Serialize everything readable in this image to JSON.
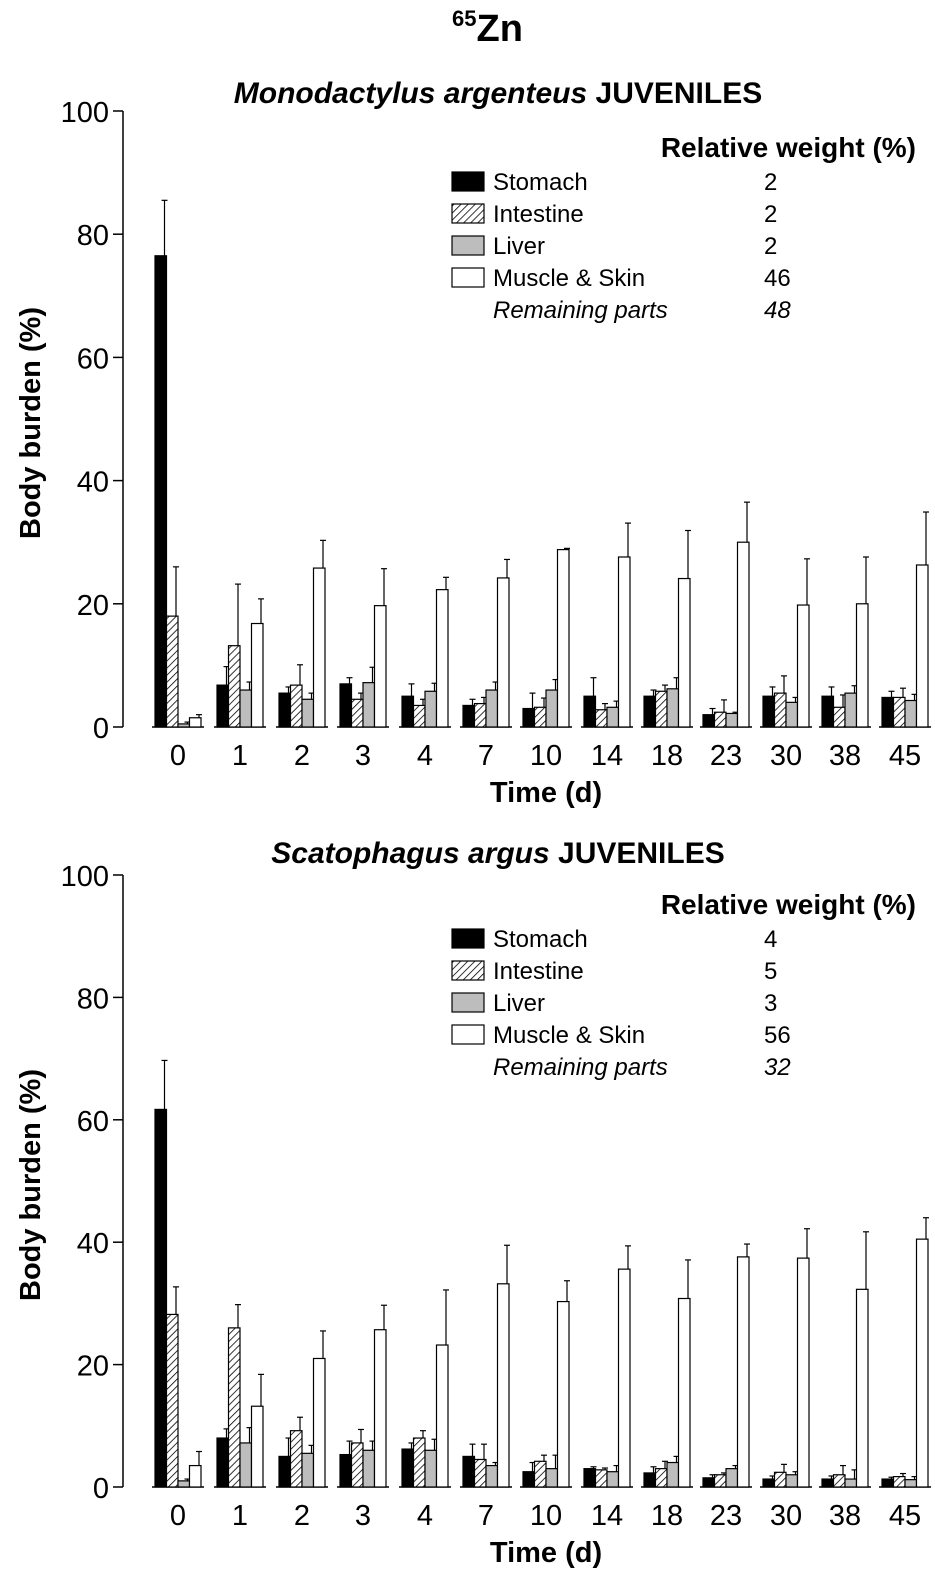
{
  "figure": {
    "title_sup": "65",
    "title_main": "Zn"
  },
  "colors": {
    "stomach": "#000000",
    "intestine_hatch": "#000000",
    "liver": "#bdbdbd",
    "muscle": "#ffffff",
    "axis": "#000000"
  },
  "chart_data": [
    {
      "type": "bar",
      "title_italic": "Monodactylus argenteus",
      "title_rest": " JUVENILES",
      "xlabel": "Time (d)",
      "ylabel": "Body burden (%)",
      "ylim": [
        0,
        100
      ],
      "yticks": [
        "0",
        "20",
        "40",
        "60",
        "80",
        "100"
      ],
      "categories": [
        "0",
        "1",
        "2",
        "3",
        "4",
        "7",
        "10",
        "14",
        "18",
        "23",
        "30",
        "38",
        "45"
      ],
      "legend_header": "Relative weight (%)",
      "series": [
        {
          "name": "Stomach",
          "weight": "2",
          "fill": "stomach",
          "values": [
            76.5,
            6.8,
            5.5,
            7.0,
            5.0,
            3.5,
            3.0,
            5.0,
            5.0,
            2.0,
            5.0,
            5.0,
            4.8
          ],
          "errors": [
            9.0,
            3.0,
            1.0,
            1.0,
            2.0,
            1.0,
            2.5,
            3.0,
            1.0,
            1.0,
            1.5,
            1.5,
            1.0
          ]
        },
        {
          "name": "Intestine",
          "weight": "2",
          "fill": "intestine",
          "values": [
            18.0,
            13.2,
            6.8,
            4.5,
            3.5,
            3.8,
            3.2,
            2.8,
            5.8,
            2.4,
            5.5,
            3.2,
            4.8
          ],
          "errors": [
            8.0,
            10.0,
            3.3,
            1.0,
            1.0,
            1.0,
            1.5,
            1.0,
            1.0,
            2.0,
            2.8,
            2.0,
            1.5
          ]
        },
        {
          "name": "Liver",
          "weight": "2",
          "fill": "liver",
          "values": [
            0.5,
            6.0,
            4.5,
            7.2,
            5.8,
            6.0,
            6.0,
            3.2,
            6.2,
            2.2,
            4.0,
            5.5,
            4.3
          ],
          "errors": [
            0.3,
            1.3,
            1.0,
            2.5,
            1.3,
            1.3,
            1.7,
            1.0,
            1.8,
            0.2,
            0.8,
            1.2,
            1.0
          ]
        },
        {
          "name": "Muscle & Skin",
          "weight": "46",
          "fill": "muscle",
          "values": [
            1.5,
            16.8,
            25.8,
            19.7,
            22.3,
            24.2,
            28.8,
            27.6,
            24.1,
            30.0,
            19.8,
            20.0,
            26.3
          ],
          "errors": [
            0.5,
            4.0,
            4.5,
            6.0,
            2.0,
            3.0,
            0.2,
            5.5,
            7.8,
            6.5,
            7.5,
            7.6,
            8.6
          ]
        }
      ],
      "remaining": {
        "name": "Remaining parts",
        "weight": "48"
      }
    },
    {
      "type": "bar",
      "title_italic": "Scatophagus argus",
      "title_rest": " JUVENILES",
      "xlabel": "Time (d)",
      "ylabel": "Body burden (%)",
      "ylim": [
        0,
        100
      ],
      "yticks": [
        "0",
        "20",
        "40",
        "60",
        "80",
        "100"
      ],
      "categories": [
        "0",
        "1",
        "2",
        "3",
        "4",
        "7",
        "10",
        "14",
        "18",
        "23",
        "30",
        "38",
        "45"
      ],
      "legend_header": "Relative weight (%)",
      "series": [
        {
          "name": "Stomach",
          "weight": "4",
          "fill": "stomach",
          "values": [
            61.7,
            8.0,
            5.0,
            5.3,
            6.2,
            5.0,
            2.5,
            3.0,
            2.3,
            1.5,
            1.3,
            1.3,
            1.3
          ],
          "errors": [
            8.0,
            1.5,
            3.0,
            2.2,
            1.0,
            2.0,
            1.5,
            0.3,
            1.0,
            0.5,
            0.5,
            0.5,
            0.3
          ]
        },
        {
          "name": "Intestine",
          "weight": "5",
          "fill": "intestine",
          "values": [
            28.2,
            26.0,
            9.2,
            7.2,
            8.0,
            4.5,
            4.2,
            2.8,
            3.0,
            2.0,
            2.4,
            2.0,
            1.7
          ],
          "errors": [
            4.5,
            3.8,
            2.2,
            2.2,
            1.2,
            2.5,
            1.0,
            0.3,
            1.2,
            0.3,
            1.3,
            1.5,
            0.5
          ]
        },
        {
          "name": "Liver",
          "weight": "3",
          "fill": "liver",
          "values": [
            1.0,
            7.2,
            5.5,
            6.0,
            6.0,
            3.5,
            3.0,
            2.5,
            4.0,
            3.0,
            2.0,
            1.3,
            1.2
          ],
          "errors": [
            0.3,
            2.5,
            1.3,
            1.5,
            1.8,
            0.5,
            2.2,
            1.0,
            1.0,
            0.5,
            0.5,
            1.5,
            0.5
          ]
        },
        {
          "name": "Muscle & Skin",
          "weight": "56",
          "fill": "muscle",
          "values": [
            3.5,
            13.2,
            21.0,
            25.7,
            23.2,
            33.2,
            30.3,
            35.6,
            30.8,
            37.6,
            37.4,
            32.3,
            40.5
          ],
          "errors": [
            2.3,
            5.2,
            4.5,
            4.0,
            9.0,
            6.3,
            3.4,
            3.8,
            6.3,
            2.1,
            4.8,
            9.4,
            3.5
          ]
        }
      ],
      "remaining": {
        "name": "Remaining parts",
        "weight": "32"
      }
    }
  ]
}
